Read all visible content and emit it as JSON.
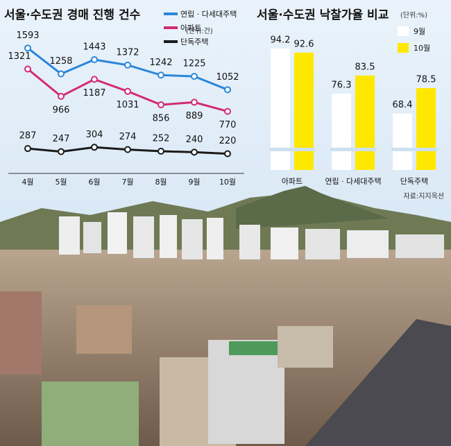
{
  "chart_data": [
    {
      "type": "line",
      "title": "서울·수도권 경매 진행 건수",
      "unit": "(단위:건)",
      "categories": [
        "4월",
        "5월",
        "6월",
        "7월",
        "8월",
        "9월",
        "10월"
      ],
      "ylim": [
        0,
        1650
      ],
      "series": [
        {
          "name": "연립 · 다세대주택",
          "color": "#2b86d9",
          "values": [
            1593,
            1258,
            1443,
            1372,
            1242,
            1225,
            1052
          ]
        },
        {
          "name": "아파트",
          "color": "#d42a72",
          "values": [
            1321,
            966,
            1187,
            1031,
            856,
            889,
            770
          ]
        },
        {
          "name": "단독주택",
          "color": "#1a1a1a",
          "values": [
            287,
            247,
            304,
            274,
            252,
            240,
            220
          ]
        }
      ]
    },
    {
      "type": "bar",
      "title": "서울·수도권 낙찰가율 비교",
      "unit": "(단위:%)",
      "categories": [
        "아파트",
        "연립 · 다세대주택",
        "단독주택"
      ],
      "ylim": [
        46,
        100
      ],
      "series": [
        {
          "name": "9월",
          "color": "#ffffff",
          "values": [
            94.2,
            76.3,
            68.4
          ]
        },
        {
          "name": "10월",
          "color": "#ffe800",
          "values": [
            92.6,
            83.5,
            78.5
          ]
        }
      ],
      "source": "자료:지지옥션"
    }
  ]
}
